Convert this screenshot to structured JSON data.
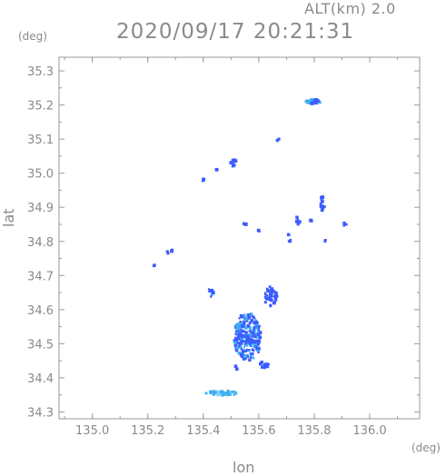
{
  "header": {
    "altitude_label": "ALT(km)  2.0",
    "datetime": "2020/09/17 20:21:31"
  },
  "chart_data": {
    "type": "scatter",
    "title": "2020/09/17 20:21:31",
    "subtitle": "ALT(km)  2.0",
    "xlabel": "lon",
    "ylabel": "lat",
    "x_unit": "(deg)",
    "y_unit": "(deg)",
    "xlim": [
      134.88,
      136.18
    ],
    "ylim": [
      34.28,
      35.34
    ],
    "x_ticks": [
      "135.0",
      "135.2",
      "135.4",
      "135.6",
      "135.8",
      "136.0"
    ],
    "y_ticks": [
      "34.3",
      "34.4",
      "34.5",
      "34.6",
      "34.7",
      "34.8",
      "34.9",
      "35.0",
      "35.1",
      "35.2",
      "35.3"
    ],
    "grid": false,
    "colors": {
      "frame": "#9a9a9a",
      "echo_main": "#3b5cff",
      "echo_light": "#3fb0f0"
    },
    "echo_clusters": [
      {
        "lon": 135.8,
        "lat": 35.21,
        "spread_lon": 0.03,
        "spread_lat": 0.006,
        "n": 30,
        "tone": "mix"
      },
      {
        "lon": 135.67,
        "lat": 35.1,
        "spread_lon": 0.005,
        "spread_lat": 0.006,
        "n": 3,
        "tone": "main"
      },
      {
        "lon": 135.51,
        "lat": 35.03,
        "spread_lon": 0.012,
        "spread_lat": 0.012,
        "n": 8,
        "tone": "main"
      },
      {
        "lon": 135.45,
        "lat": 35.01,
        "spread_lon": 0.005,
        "spread_lat": 0.004,
        "n": 3,
        "tone": "main"
      },
      {
        "lon": 135.4,
        "lat": 34.98,
        "spread_lon": 0.008,
        "spread_lat": 0.003,
        "n": 3,
        "tone": "main"
      },
      {
        "lon": 135.83,
        "lat": 34.91,
        "spread_lon": 0.01,
        "spread_lat": 0.025,
        "n": 14,
        "tone": "main"
      },
      {
        "lon": 135.79,
        "lat": 34.86,
        "spread_lon": 0.005,
        "spread_lat": 0.004,
        "n": 3,
        "tone": "main"
      },
      {
        "lon": 135.91,
        "lat": 34.85,
        "spread_lon": 0.006,
        "spread_lat": 0.004,
        "n": 3,
        "tone": "main"
      },
      {
        "lon": 135.74,
        "lat": 34.86,
        "spread_lon": 0.01,
        "spread_lat": 0.012,
        "n": 6,
        "tone": "main"
      },
      {
        "lon": 135.71,
        "lat": 34.81,
        "spread_lon": 0.006,
        "spread_lat": 0.012,
        "n": 4,
        "tone": "main"
      },
      {
        "lon": 135.84,
        "lat": 34.8,
        "spread_lon": 0.006,
        "spread_lat": 0.006,
        "n": 3,
        "tone": "main"
      },
      {
        "lon": 135.28,
        "lat": 34.77,
        "spread_lon": 0.012,
        "spread_lat": 0.008,
        "n": 6,
        "tone": "main"
      },
      {
        "lon": 135.22,
        "lat": 34.73,
        "spread_lon": 0.004,
        "spread_lat": 0.004,
        "n": 2,
        "tone": "main"
      },
      {
        "lon": 135.56,
        "lat": 34.52,
        "spread_lon": 0.05,
        "spread_lat": 0.07,
        "n": 230,
        "tone": "mix"
      },
      {
        "lon": 135.64,
        "lat": 34.64,
        "spread_lon": 0.025,
        "spread_lat": 0.03,
        "n": 40,
        "tone": "main"
      },
      {
        "lon": 135.43,
        "lat": 34.65,
        "spread_lon": 0.012,
        "spread_lat": 0.02,
        "n": 8,
        "tone": "mix"
      },
      {
        "lon": 135.62,
        "lat": 34.44,
        "spread_lon": 0.018,
        "spread_lat": 0.012,
        "n": 10,
        "tone": "main"
      },
      {
        "lon": 135.52,
        "lat": 34.43,
        "spread_lon": 0.006,
        "spread_lat": 0.005,
        "n": 3,
        "tone": "main"
      },
      {
        "lon": 135.47,
        "lat": 34.355,
        "spread_lon": 0.06,
        "spread_lat": 0.006,
        "n": 45,
        "tone": "light"
      },
      {
        "lon": 135.55,
        "lat": 34.85,
        "spread_lon": 0.004,
        "spread_lat": 0.004,
        "n": 2,
        "tone": "main"
      },
      {
        "lon": 135.6,
        "lat": 34.83,
        "spread_lon": 0.004,
        "spread_lat": 0.004,
        "n": 2,
        "tone": "main"
      }
    ]
  }
}
